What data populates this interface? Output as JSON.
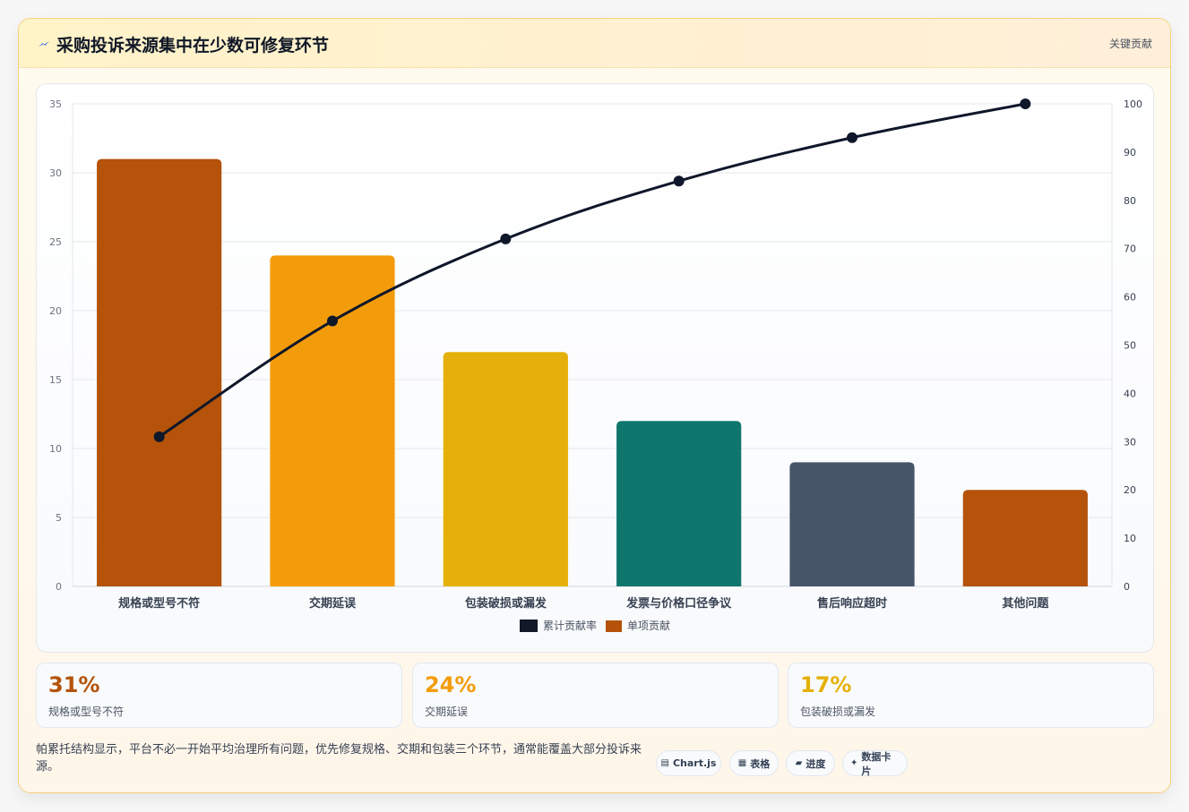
{
  "header": {
    "title": "采购投诉来源集中在少数可修复环节",
    "tag": "关键贡献",
    "icon": "lightning-icon"
  },
  "chart_data": {
    "type": "bar",
    "categories": [
      "规格或型号不符",
      "交期延误",
      "包装破损或漏发",
      "发票与价格口径争议",
      "售后响应超时",
      "其他问题"
    ],
    "series": [
      {
        "name": "单项贡献",
        "type": "bar",
        "axis": "left",
        "values": [
          31,
          24,
          17,
          12,
          9,
          7
        ],
        "colors": [
          "#b45309",
          "#f39c0b",
          "#e6b00a",
          "#0f766e",
          "#475569",
          "#b45309"
        ]
      },
      {
        "name": "累计贡献率",
        "type": "line",
        "axis": "right",
        "values": [
          31,
          55,
          72,
          84,
          93,
          100
        ],
        "color": "#0f172a"
      }
    ],
    "ylim": [
      0,
      35
    ],
    "yticks": [
      "0",
      "5",
      "10",
      "15",
      "20",
      "25",
      "30",
      "35"
    ],
    "y2lim": [
      0,
      100
    ],
    "y2ticks": [
      "0",
      "10",
      "20",
      "30",
      "40",
      "50",
      "60",
      "70",
      "80",
      "90",
      "100"
    ],
    "legend": [
      {
        "label": "累计贡献率",
        "color": "#111827"
      },
      {
        "label": "单项贡献",
        "color": "#b45309"
      }
    ],
    "legend_position": "bottom",
    "grid": true
  },
  "kpis": [
    {
      "value": "31%",
      "label": "规格或型号不符",
      "color": "#b45309"
    },
    {
      "value": "24%",
      "label": "交期延误",
      "color": "#f39c0b"
    },
    {
      "value": "17%",
      "label": "包装破损或漏发",
      "color": "#e6b00a"
    }
  ],
  "footer": {
    "text": "帕累托结构显示，平台不必一开始平均治理所有问题，优先修复规格、交期和包装三个环节，通常能覆盖大部分投诉来源。",
    "chips": [
      {
        "icon": "chart-icon",
        "glyph": "▤",
        "label": "Chart.js"
      },
      {
        "icon": "table-icon",
        "glyph": "▦",
        "label": "表格"
      },
      {
        "icon": "progress-icon",
        "glyph": "▰",
        "label": "进度"
      },
      {
        "icon": "sparkle-icon",
        "glyph": "✦",
        "label": "数据卡片"
      }
    ]
  }
}
